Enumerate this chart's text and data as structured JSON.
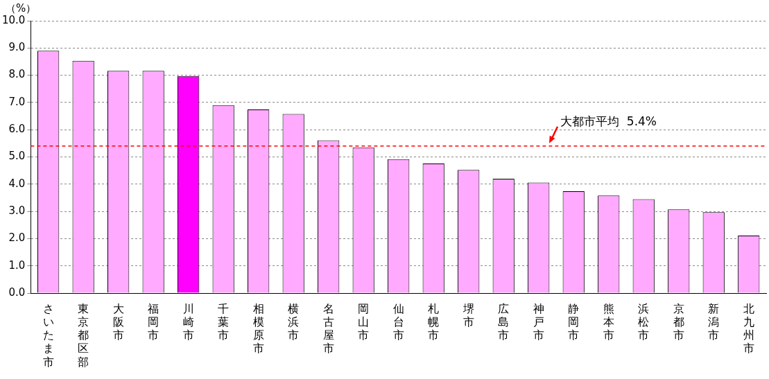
{
  "chart_data": {
    "type": "bar",
    "ylabel": "（%）",
    "categories": [
      "さいたま市",
      "東京都区部",
      "大阪市",
      "福岡市",
      "川崎市",
      "千葉市",
      "相模原市",
      "横浜市",
      "名古屋市",
      "岡山市",
      "仙台市",
      "札幌市",
      "堺市",
      "広島市",
      "神戸市",
      "静岡市",
      "熊本市",
      "浜松市",
      "京都市",
      "新潟市",
      "北九州市"
    ],
    "values": [
      8.9,
      8.53,
      8.16,
      8.16,
      7.97,
      6.9,
      6.74,
      6.58,
      5.61,
      5.35,
      4.92,
      4.76,
      4.52,
      4.2,
      4.06,
      3.74,
      3.58,
      3.45,
      3.07,
      2.97,
      2.11
    ],
    "colors": [
      "#ffaaff",
      "#ffaaff",
      "#ffaaff",
      "#ffaaff",
      "#ff00ff",
      "#ffaaff",
      "#ffaaff",
      "#ffaaff",
      "#ffaaff",
      "#ffaaff",
      "#ffaaff",
      "#ffaaff",
      "#ffaaff",
      "#ffaaff",
      "#ffaaff",
      "#ffaaff",
      "#ffaaff",
      "#ffaaff",
      "#ffaaff",
      "#ffaaff",
      "#ffaaff"
    ],
    "ylim": [
      0,
      10
    ],
    "yticks": [
      {
        "value": 0,
        "label": "0.0"
      },
      {
        "value": 1,
        "label": "1.0"
      },
      {
        "value": 2,
        "label": "2.0"
      },
      {
        "value": 3,
        "label": "3.0"
      },
      {
        "value": 4,
        "label": "4.0"
      },
      {
        "value": 5,
        "label": "5.0"
      },
      {
        "value": 6,
        "label": "6.0"
      },
      {
        "value": 7,
        "label": "7.0"
      },
      {
        "value": 8,
        "label": "8.0"
      },
      {
        "value": 9,
        "label": "9.0"
      },
      {
        "value": 10,
        "label": "10.0"
      }
    ],
    "grid": "y",
    "legend": false,
    "ref_lines": [
      {
        "axis": "y",
        "value": 5.4,
        "label": "大都市平均  5.4%",
        "color": "#ff0000",
        "line_style": "dashed"
      }
    ]
  }
}
